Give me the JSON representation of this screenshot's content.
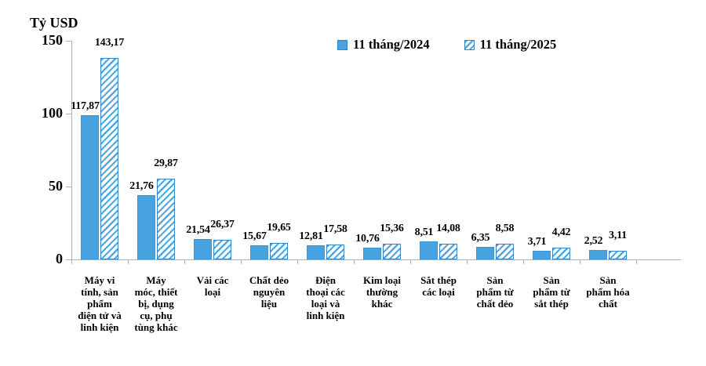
{
  "title": "Tỷ USD",
  "legend": {
    "items": [
      {
        "label": "11 tháng/2024",
        "swatch": "solid"
      },
      {
        "label": "11 tháng/2025",
        "swatch": "hatched"
      }
    ]
  },
  "y_axis": {
    "unit_label": "Tỷ USD",
    "ticks": [
      "0",
      "50",
      "100",
      "150"
    ],
    "tick_values": [
      0,
      50,
      100,
      150
    ],
    "max": 150
  },
  "colors": {
    "bar_solid": "#47A3DF",
    "bar_border": "#2E86C8",
    "hatch_stripe": "#4FA8E0",
    "axis": "#AFAFAF",
    "text": "#000000",
    "background": "#FFFFFF"
  },
  "chart_data": {
    "type": "bar",
    "title": "Tỷ USD",
    "xlabel": "",
    "ylabel": "Tỷ USD",
    "ylim": [
      0,
      150
    ],
    "grid": false,
    "legend_position": "top",
    "categories": [
      "Máy vi tính, sản phẩm điện tử và linh kiện",
      "Máy móc, thiết bị, dụng cụ, phụ tùng khác",
      "Vải các loại",
      "Chất dẻo nguyên liệu",
      "Điện thoại các loại và linh kiện",
      "Kim loại thường khác",
      "Sắt thép các loại",
      "Sản phẩm từ chất dẻo",
      "Sản phẩm từ sắt thép",
      "Sản phẩm hóa chất"
    ],
    "category_lines": [
      [
        "Máy vi",
        "tính, sản",
        "phẩm",
        "điện tử và",
        "linh kiện"
      ],
      [
        "Máy",
        "móc, thiết",
        "bị, dụng",
        "cụ, phụ",
        "tùng khác"
      ],
      [
        "Vải các",
        "loại"
      ],
      [
        "Chất dẻo",
        "nguyên",
        "liệu"
      ],
      [
        "Điện",
        "thoại các",
        "loại và",
        "linh kiện"
      ],
      [
        "Kim loại",
        "thường",
        "khác"
      ],
      [
        "Sắt thép",
        "các loại"
      ],
      [
        "Sản",
        "phẩm từ",
        "chất dẻo"
      ],
      [
        "Sản",
        "phẩm từ",
        "sắt thép"
      ],
      [
        "Sản",
        "phẩm hóa",
        "chất"
      ]
    ],
    "series": [
      {
        "name": "11 tháng/2024",
        "labels": [
          "117,87",
          "21,76",
          "21,54",
          "15,67",
          "12,81",
          "10,76",
          "8,51",
          "6,35",
          "3,71",
          "2,52"
        ],
        "values": [
          117.87,
          21.76,
          21.54,
          15.67,
          12.81,
          10.76,
          8.51,
          6.35,
          3.71,
          2.52
        ],
        "drawn_values_approx": [
          98.9,
          44.1,
          14.0,
          9.7,
          9.7,
          8.1,
          12.4,
          8.6,
          5.9,
          6.5
        ]
      },
      {
        "name": "11 tháng/2025",
        "labels": [
          "143,17",
          "29,87",
          "26,37",
          "19,65",
          "17,58",
          "15,36",
          "14,08",
          "8,58",
          "4,42",
          "3,11"
        ],
        "values": [
          143.17,
          29.87,
          26.37,
          19.65,
          17.58,
          15.36,
          14.08,
          8.58,
          4.42,
          3.11
        ],
        "drawn_values_approx": [
          138.2,
          55.4,
          13.4,
          11.3,
          10.2,
          10.8,
          10.8,
          10.8,
          8.1,
          5.9
        ]
      }
    ]
  }
}
